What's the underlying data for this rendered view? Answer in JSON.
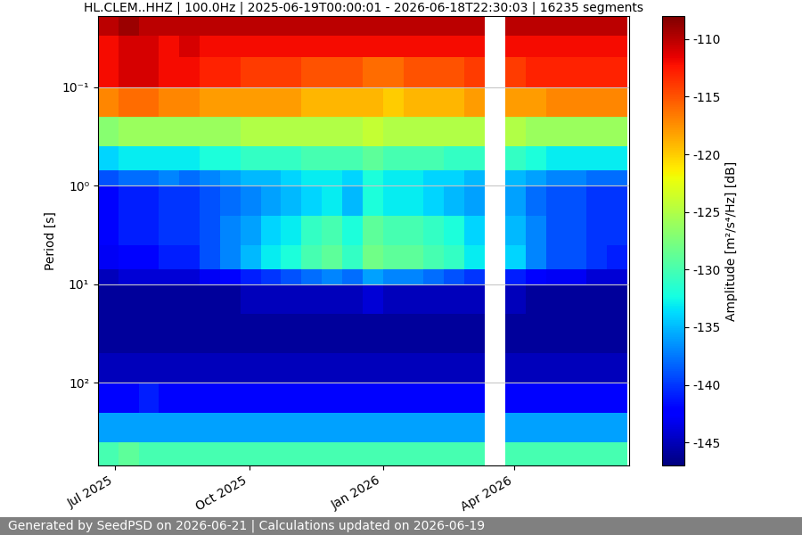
{
  "chart_data": {
    "type": "heatmap",
    "title": "HL.CLEM..HHZ | 100.0Hz | 2025-06-19T00:00:01 - 2026-06-18T22:30:03 | 16235 segments",
    "footer": "Generated by SeedPSD on 2026-06-21 | Calculations updated on 2026-06-19",
    "ylabel": "Period [s]",
    "colorbar_label": "Amplitude [m²/s⁴/Hz] [dB]",
    "log": "y",
    "grid": true,
    "x_edges": [
      "2025-06-19",
      "2025-07-03",
      "2025-07-17",
      "2025-07-31",
      "2025-08-14",
      "2025-08-28",
      "2025-09-11",
      "2025-09-25",
      "2025-10-09",
      "2025-10-23",
      "2025-11-06",
      "2025-11-20",
      "2025-12-04",
      "2025-12-18",
      "2026-01-01",
      "2026-01-15",
      "2026-01-29",
      "2026-02-12",
      "2026-02-26",
      "2026-03-12",
      "2026-03-26",
      "2026-04-09",
      "2026-04-23",
      "2026-05-07",
      "2026-05-21",
      "2026-06-04",
      "2026-06-18"
    ],
    "y_edges": [
      0.019,
      0.03,
      0.05,
      0.1,
      0.2,
      0.4,
      0.7,
      1,
      2,
      4,
      7,
      10,
      20,
      50,
      100,
      200,
      400,
      690
    ],
    "cells": [
      [
        -110,
        -112,
        -112,
        -117,
        -127,
        -134,
        -139,
        -142,
        -142,
        -143,
        -145,
        -146,
        -146,
        -145,
        -142,
        -136,
        -130
      ],
      [
        -109,
        -111,
        -111,
        -116,
        -126,
        -133,
        -138,
        -141,
        -141,
        -142,
        -144,
        -146,
        -146,
        -145,
        -142,
        -136,
        -129
      ],
      [
        -110,
        -111,
        -111,
        -116,
        -126,
        -133,
        -138,
        -141,
        -141,
        -142,
        -144,
        -146,
        -146,
        -145,
        -141,
        -136,
        -130
      ],
      [
        -110,
        -112,
        -112,
        -117,
        -126,
        -133,
        -137,
        -140,
        -140,
        -141,
        -144,
        -146,
        -146,
        -145,
        -142,
        -136,
        -130
      ],
      [
        -110,
        -111,
        -112,
        -117,
        -126,
        -133,
        -138,
        -140,
        -140,
        -141,
        -144,
        -146,
        -146,
        -145,
        -142,
        -136,
        -130
      ],
      [
        -110,
        -112,
        -113,
        -118,
        -126,
        -132,
        -137,
        -139,
        -139,
        -139,
        -143,
        -146,
        -146,
        -145,
        -142,
        -136,
        -130
      ],
      [
        -110,
        -112,
        -113,
        -118,
        -126,
        -132,
        -136,
        -138,
        -137,
        -137,
        -142,
        -146,
        -146,
        -145,
        -142,
        -136,
        -130
      ],
      [
        -110,
        -112,
        -114,
        -118,
        -125,
        -131,
        -135,
        -137,
        -136,
        -135,
        -141,
        -145,
        -146,
        -145,
        -142,
        -136,
        -130
      ],
      [
        -110,
        -112,
        -114,
        -118,
        -125,
        -131,
        -135,
        -136,
        -134,
        -133,
        -140,
        -145,
        -146,
        -145,
        -142,
        -136,
        -130
      ],
      [
        -110,
        -112,
        -114,
        -118,
        -125,
        -131,
        -134,
        -135,
        -133,
        -132,
        -139,
        -145,
        -146,
        -145,
        -142,
        -136,
        -130
      ],
      [
        -110,
        -112,
        -115,
        -119,
        -125,
        -130,
        -133,
        -134,
        -131,
        -130,
        -138,
        -145,
        -146,
        -145,
        -142,
        -136,
        -130
      ],
      [
        -110,
        -112,
        -115,
        -119,
        -125,
        -130,
        -133,
        -133,
        -130,
        -129,
        -137,
        -145,
        -146,
        -145,
        -142,
        -136,
        -130
      ],
      [
        -110,
        -112,
        -115,
        -119,
        -125,
        -130,
        -134,
        -135,
        -132,
        -131,
        -138,
        -145,
        -146,
        -145,
        -142,
        -136,
        -130
      ],
      [
        -110,
        -112,
        -116,
        -119,
        -124,
        -129,
        -132,
        -132,
        -129,
        -128,
        -136,
        -144,
        -146,
        -145,
        -142,
        -136,
        -130
      ],
      [
        -110,
        -112,
        -116,
        -120,
        -125,
        -130,
        -133,
        -133,
        -130,
        -129,
        -137,
        -145,
        -146,
        -145,
        -142,
        -136,
        -130
      ],
      [
        -110,
        -112,
        -115,
        -119,
        -125,
        -130,
        -133,
        -133,
        -130,
        -129,
        -137,
        -145,
        -146,
        -145,
        -142,
        -136,
        -130
      ],
      [
        -110,
        -112,
        -115,
        -119,
        -125,
        -130,
        -134,
        -134,
        -131,
        -130,
        -138,
        -145,
        -146,
        -145,
        -142,
        -136,
        -130
      ],
      [
        -110,
        -112,
        -115,
        -119,
        -125,
        -131,
        -134,
        -135,
        -132,
        -131,
        -139,
        -145,
        -146,
        -145,
        -142,
        -136,
        -130
      ],
      [
        -110,
        -112,
        -114,
        -118,
        -125,
        -131,
        -135,
        -136,
        -134,
        -133,
        -140,
        -145,
        -146,
        -145,
        -142,
        -136,
        -130
      ],
      [
        null,
        null,
        null,
        null,
        null,
        null,
        null,
        null,
        null,
        null,
        null,
        null,
        null,
        null,
        null,
        null,
        null
      ],
      [
        -110,
        -112,
        -114,
        -118,
        -125,
        -131,
        -135,
        -136,
        -135,
        -134,
        -141,
        -145,
        -146,
        -145,
        -142,
        -136,
        -130
      ],
      [
        -110,
        -112,
        -113,
        -118,
        -126,
        -132,
        -136,
        -138,
        -137,
        -137,
        -142,
        -146,
        -146,
        -145,
        -142,
        -136,
        -130
      ],
      [
        -110,
        -112,
        -113,
        -117,
        -126,
        -133,
        -137,
        -139,
        -139,
        -139,
        -143,
        -146,
        -146,
        -145,
        -142,
        -136,
        -130
      ],
      [
        -110,
        -112,
        -113,
        -117,
        -126,
        -133,
        -137,
        -139,
        -139,
        -139,
        -143,
        -146,
        -146,
        -145,
        -142,
        -136,
        -130
      ],
      [
        -110,
        -112,
        -113,
        -117,
        -126,
        -133,
        -138,
        -140,
        -140,
        -140,
        -144,
        -146,
        -146,
        -145,
        -142,
        -136,
        -130
      ],
      [
        -110,
        -112,
        -113,
        -117,
        -126,
        -133,
        -138,
        -140,
        -140,
        -141,
        -144,
        -146,
        -146,
        -145,
        -142,
        -136,
        -130
      ]
    ],
    "xlim": [
      "2025-06-19",
      "2026-06-19"
    ],
    "xticks": [
      {
        "value": "2025-07-01",
        "label": "Jul 2025"
      },
      {
        "value": "2025-10-01",
        "label": "Oct 2025"
      },
      {
        "value": "2026-01-01",
        "label": "Jan 2026"
      },
      {
        "value": "2026-04-01",
        "label": "Apr 2026"
      }
    ],
    "ylim": [
      690,
      0.019
    ],
    "yticks": [
      {
        "value": 0.1,
        "label": "10⁻¹"
      },
      {
        "value": 1,
        "label": "10⁰"
      },
      {
        "value": 10,
        "label": "10¹"
      },
      {
        "value": 100,
        "label": "10²"
      }
    ],
    "clim": [
      -147,
      -108
    ],
    "cticks": [
      -145,
      -140,
      -135,
      -130,
      -125,
      -120,
      -115,
      -110
    ]
  }
}
